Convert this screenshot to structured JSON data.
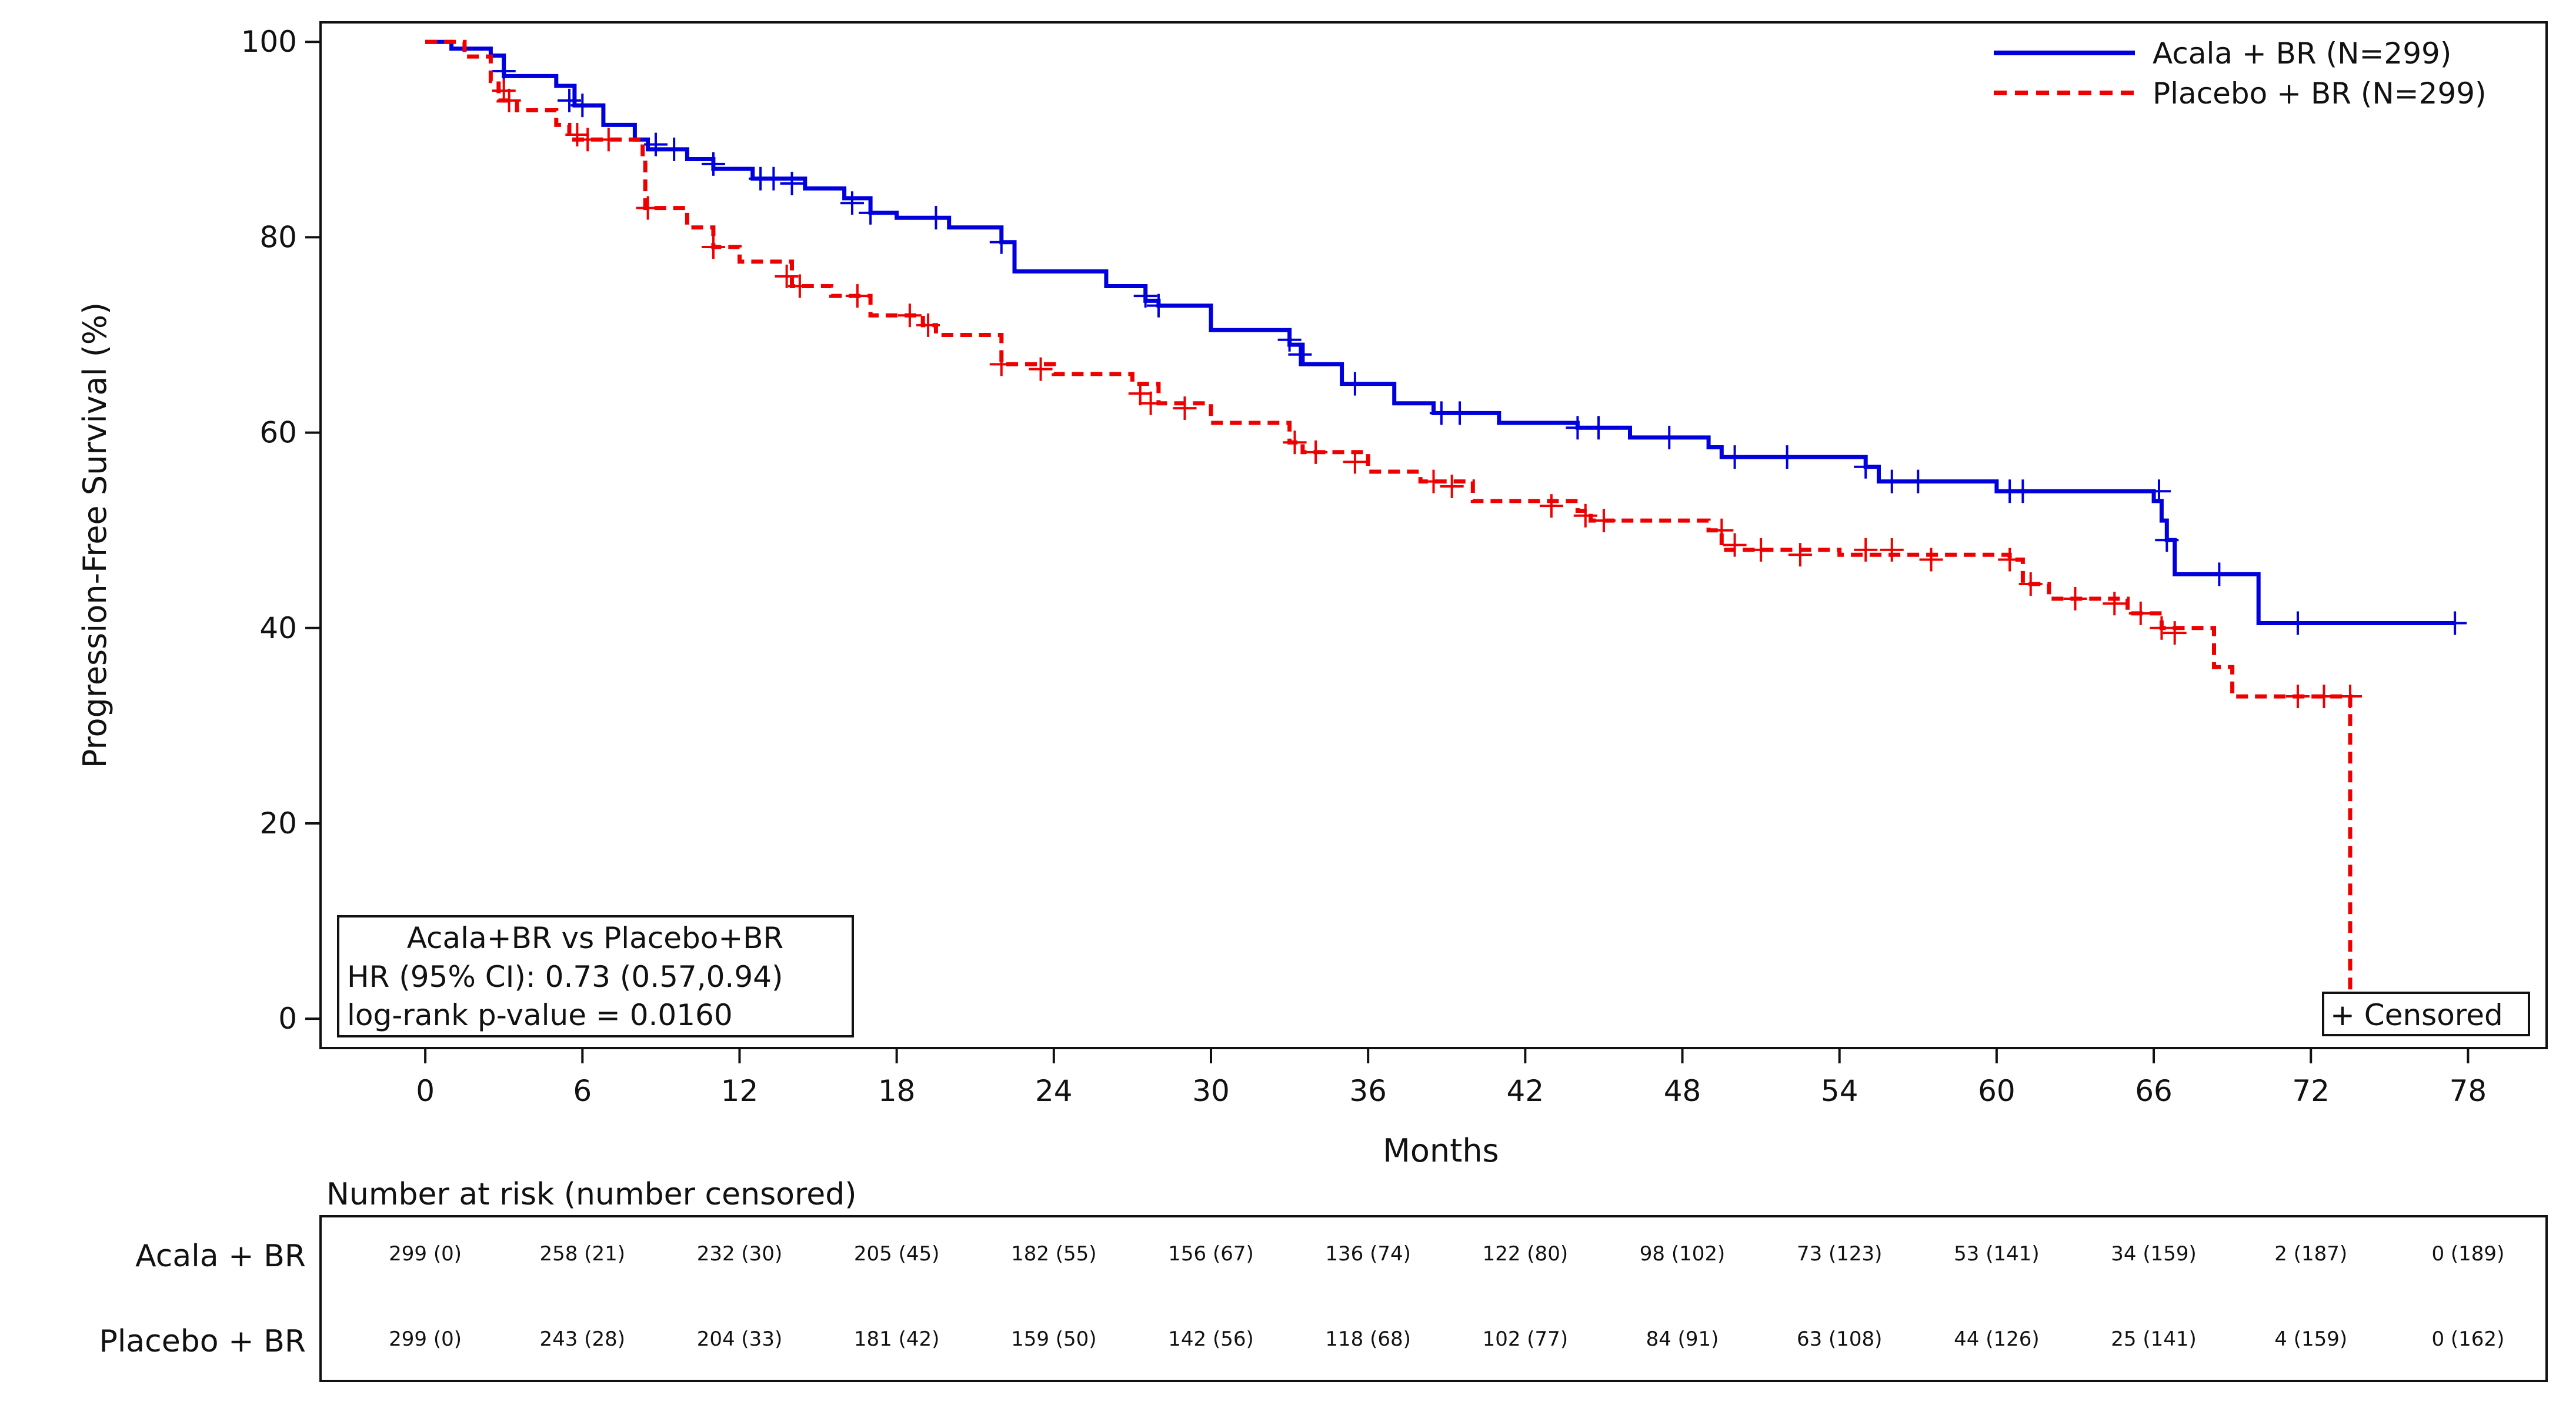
{
  "chart_data": {
    "type": "line",
    "subtype": "kaplan-meier",
    "xlabel": "Months",
    "ylabel": "Progression-Free Survival (%)",
    "xlim": [
      -4,
      81
    ],
    "ylim": [
      -3,
      102
    ],
    "x_ticks": [
      0,
      6,
      12,
      18,
      24,
      30,
      36,
      42,
      48,
      54,
      60,
      66,
      72,
      78
    ],
    "y_ticks": [
      0,
      20,
      40,
      60,
      80,
      100
    ],
    "grid": false,
    "legend_position": "top-right",
    "series": [
      {
        "name": "Acala + BR (N=299)",
        "color": "#0000dd",
        "line_style": "solid",
        "steps": [
          [
            0,
            100
          ],
          [
            1,
            99.3
          ],
          [
            2.5,
            98.6
          ],
          [
            3,
            96.5
          ],
          [
            5,
            95.5
          ],
          [
            5.7,
            93.5
          ],
          [
            6.8,
            91.5
          ],
          [
            8,
            90
          ],
          [
            8.5,
            89
          ],
          [
            10,
            88
          ],
          [
            11,
            87
          ],
          [
            12.5,
            86
          ],
          [
            14.5,
            85
          ],
          [
            16,
            84
          ],
          [
            17,
            82.5
          ],
          [
            18,
            82
          ],
          [
            20,
            81
          ],
          [
            22,
            79.5
          ],
          [
            22.5,
            76.5
          ],
          [
            26,
            75
          ],
          [
            27.5,
            73.5
          ],
          [
            28,
            73
          ],
          [
            30,
            70.5
          ],
          [
            33,
            69
          ],
          [
            33.5,
            67
          ],
          [
            35,
            65
          ],
          [
            37,
            63
          ],
          [
            38.5,
            62
          ],
          [
            41,
            61
          ],
          [
            44,
            60.5
          ],
          [
            46,
            59.5
          ],
          [
            49,
            58.5
          ],
          [
            49.5,
            57.5
          ],
          [
            55,
            56.5
          ],
          [
            55.5,
            55
          ],
          [
            60,
            54
          ],
          [
            66,
            53
          ],
          [
            66.3,
            51
          ],
          [
            66.5,
            49
          ],
          [
            66.8,
            45.5
          ],
          [
            70,
            40.5
          ],
          [
            77.5,
            40.5
          ]
        ],
        "censor_marks": [
          [
            3,
            97
          ],
          [
            5.5,
            94
          ],
          [
            6,
            93.5
          ],
          [
            8.8,
            89.5
          ],
          [
            9.5,
            89
          ],
          [
            11,
            87.5
          ],
          [
            12.8,
            86
          ],
          [
            13.3,
            86
          ],
          [
            14,
            85.5
          ],
          [
            16.3,
            83.5
          ],
          [
            17,
            82.5
          ],
          [
            19.5,
            82
          ],
          [
            22,
            79.5
          ],
          [
            27.5,
            74
          ],
          [
            28,
            73
          ],
          [
            33,
            69.5
          ],
          [
            33.4,
            68
          ],
          [
            35.5,
            65
          ],
          [
            38.8,
            62
          ],
          [
            39.5,
            62
          ],
          [
            44,
            60.5
          ],
          [
            44.8,
            60.5
          ],
          [
            47.5,
            59.5
          ],
          [
            50,
            57.5
          ],
          [
            52,
            57.5
          ],
          [
            55,
            56.5
          ],
          [
            56,
            55
          ],
          [
            57,
            55
          ],
          [
            60.5,
            54
          ],
          [
            61,
            54
          ],
          [
            66.2,
            54
          ],
          [
            66.5,
            49
          ],
          [
            68.5,
            45.5
          ],
          [
            71.5,
            40.5
          ],
          [
            77.5,
            40.5
          ]
        ]
      },
      {
        "name": "Placebo + BR (N=299)",
        "color": "#ee0000",
        "line_style": "dashed",
        "steps": [
          [
            0,
            100
          ],
          [
            1.5,
            98.5
          ],
          [
            2.5,
            96
          ],
          [
            2.8,
            94
          ],
          [
            3.5,
            93
          ],
          [
            5,
            91.5
          ],
          [
            5.5,
            90
          ],
          [
            8.3,
            88
          ],
          [
            8.4,
            83
          ],
          [
            10,
            81
          ],
          [
            11,
            79
          ],
          [
            12,
            77.5
          ],
          [
            14,
            75
          ],
          [
            15.5,
            74
          ],
          [
            17,
            72
          ],
          [
            19,
            71
          ],
          [
            19.5,
            70
          ],
          [
            22,
            67
          ],
          [
            24,
            66
          ],
          [
            27,
            65
          ],
          [
            28,
            63
          ],
          [
            30,
            61
          ],
          [
            33,
            59
          ],
          [
            33.5,
            58
          ],
          [
            36,
            56
          ],
          [
            38,
            55
          ],
          [
            40,
            53
          ],
          [
            44,
            52
          ],
          [
            44.5,
            51
          ],
          [
            49,
            50
          ],
          [
            49.5,
            48
          ],
          [
            54,
            47.5
          ],
          [
            60.5,
            47
          ],
          [
            61,
            44.5
          ],
          [
            62,
            43
          ],
          [
            65,
            41.5
          ],
          [
            66.3,
            40
          ],
          [
            68.3,
            36
          ],
          [
            69,
            33
          ],
          [
            73.5,
            33
          ],
          [
            73.5,
            3
          ]
        ],
        "censor_marks": [
          [
            3,
            95
          ],
          [
            3.2,
            94
          ],
          [
            5.8,
            90.5
          ],
          [
            6.2,
            90
          ],
          [
            7,
            90
          ],
          [
            8.5,
            83
          ],
          [
            11,
            79
          ],
          [
            13.8,
            76
          ],
          [
            14.3,
            75
          ],
          [
            16.5,
            74
          ],
          [
            18.5,
            72
          ],
          [
            19.2,
            71
          ],
          [
            22,
            67
          ],
          [
            23.5,
            66.5
          ],
          [
            27.3,
            64
          ],
          [
            27.7,
            63
          ],
          [
            29,
            62.5
          ],
          [
            33.2,
            59
          ],
          [
            34,
            58
          ],
          [
            35.5,
            57
          ],
          [
            38.5,
            55
          ],
          [
            39.2,
            54.5
          ],
          [
            43,
            52.5
          ],
          [
            44.3,
            51.5
          ],
          [
            45,
            51
          ],
          [
            49.5,
            50
          ],
          [
            50,
            48.5
          ],
          [
            51,
            48
          ],
          [
            52.5,
            47.5
          ],
          [
            55,
            48
          ],
          [
            56,
            48
          ],
          [
            57.5,
            47
          ],
          [
            60.5,
            47
          ],
          [
            61.3,
            44.5
          ],
          [
            63,
            43
          ],
          [
            64.5,
            42.5
          ],
          [
            65.5,
            41.5
          ],
          [
            66.3,
            40
          ],
          [
            66.8,
            39.5
          ],
          [
            71.5,
            33
          ],
          [
            72.5,
            33
          ],
          [
            73.5,
            33
          ]
        ]
      }
    ],
    "annotation_box": {
      "lines": [
        "Acala+BR vs Placebo+BR",
        "HR (95% CI): 0.73 (0.57,0.94)",
        "log-rank p-value = 0.0160"
      ]
    },
    "censored_legend": "+ Censored",
    "risk_table": {
      "title": "Number at risk (number censored)",
      "times": [
        0,
        6,
        12,
        18,
        24,
        30,
        36,
        42,
        48,
        54,
        60,
        66,
        72,
        78
      ],
      "rows": [
        {
          "label": "Acala + BR",
          "values": [
            "299 (0)",
            "258 (21)",
            "232 (30)",
            "205 (45)",
            "182 (55)",
            "156 (67)",
            "136 (74)",
            "122 (80)",
            "98 (102)",
            "73 (123)",
            "53 (141)",
            "34 (159)",
            "2 (187)",
            "0 (189)"
          ]
        },
        {
          "label": "Placebo + BR",
          "values": [
            "299 (0)",
            "243 (28)",
            "204 (33)",
            "181 (42)",
            "159 (50)",
            "142 (56)",
            "118 (68)",
            "102 (77)",
            "84 (91)",
            "63 (108)",
            "44 (126)",
            "25 (141)",
            "4 (159)",
            "0 (162)"
          ]
        }
      ]
    }
  }
}
